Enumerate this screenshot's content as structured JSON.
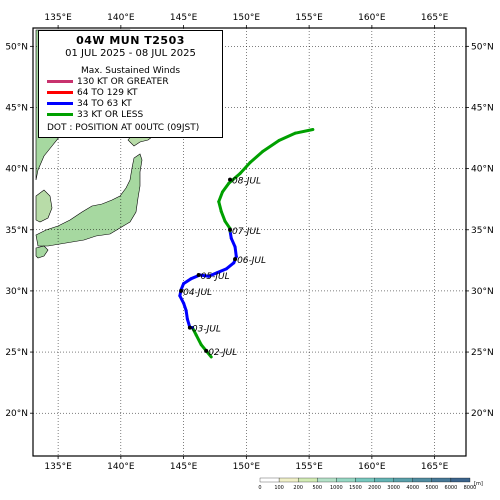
{
  "title": {
    "storm": "04W  MUN  T2503",
    "period": "01 JUL 2025 - 08 JUL 2025"
  },
  "legend": {
    "heading": "Max. Sustained Winds",
    "items": [
      {
        "label": "130 KT OR GREATER",
        "color": "#c8326e"
      },
      {
        "label": "64 TO 129 KT",
        "color": "#ff0000"
      },
      {
        "label": "34 TO 63 KT",
        "color": "#0000ff"
      },
      {
        "label": "33 KT OR LESS",
        "color": "#00a000"
      }
    ],
    "dot_note": "DOT : POSITION AT 00UTC (09JST)"
  },
  "axes": {
    "lon_ticks": [
      {
        "value": 135,
        "label": "135°E"
      },
      {
        "value": 140,
        "label": "140°E"
      },
      {
        "value": 145,
        "label": "145°E"
      },
      {
        "value": 150,
        "label": "150°E"
      },
      {
        "value": 155,
        "label": "155°E"
      },
      {
        "value": 160,
        "label": "160°E"
      },
      {
        "value": 165,
        "label": "165°E"
      }
    ],
    "lat_ticks": [
      {
        "value": 50,
        "label": "50°N"
      },
      {
        "value": 45,
        "label": "45°N"
      },
      {
        "value": 40,
        "label": "40°N"
      },
      {
        "value": 35,
        "label": "35°N"
      },
      {
        "value": 30,
        "label": "30°N"
      },
      {
        "value": 25,
        "label": "25°N"
      },
      {
        "value": 20,
        "label": "20°N"
      }
    ],
    "lon_range": [
      133,
      167.5
    ],
    "lat_range": [
      16.5,
      51.5
    ],
    "grid": true
  },
  "track": [
    {
      "lon": 147.2,
      "lat": 24.6,
      "cat": "ts_or_less"
    },
    {
      "lon": 146.8,
      "lat": 25.1,
      "cat": "ts_or_less"
    },
    {
      "lon": 146.4,
      "lat": 25.6,
      "cat": "ts_or_less"
    },
    {
      "lon": 146.0,
      "lat": 26.4,
      "cat": "ts_or_less"
    },
    {
      "lon": 145.7,
      "lat": 27.0,
      "cat": "ts_or_less"
    },
    {
      "lon": 145.5,
      "lat": 27.0,
      "cat": "storm"
    },
    {
      "lon": 145.3,
      "lat": 27.7,
      "cat": "storm"
    },
    {
      "lon": 145.2,
      "lat": 28.4,
      "cat": "storm"
    },
    {
      "lon": 145.0,
      "lat": 29.0,
      "cat": "storm"
    },
    {
      "lon": 144.7,
      "lat": 29.6,
      "cat": "storm"
    },
    {
      "lon": 144.8,
      "lat": 30.1,
      "cat": "storm"
    },
    {
      "lon": 145.0,
      "lat": 30.6,
      "cat": "storm"
    },
    {
      "lon": 145.6,
      "lat": 31.0,
      "cat": "storm"
    },
    {
      "lon": 146.3,
      "lat": 31.3,
      "cat": "storm"
    },
    {
      "lon": 147.0,
      "lat": 31.2,
      "cat": "storm"
    },
    {
      "lon": 147.7,
      "lat": 31.5,
      "cat": "storm"
    },
    {
      "lon": 148.4,
      "lat": 31.8,
      "cat": "storm"
    },
    {
      "lon": 149.0,
      "lat": 32.3,
      "cat": "storm"
    },
    {
      "lon": 149.2,
      "lat": 32.8,
      "cat": "storm"
    },
    {
      "lon": 149.1,
      "lat": 33.6,
      "cat": "storm"
    },
    {
      "lon": 148.8,
      "lat": 34.3,
      "cat": "storm"
    },
    {
      "lon": 148.7,
      "lat": 34.9,
      "cat": "storm"
    },
    {
      "lon": 148.7,
      "lat": 35.1,
      "cat": "ts_or_less"
    },
    {
      "lon": 148.3,
      "lat": 35.7,
      "cat": "ts_or_less"
    },
    {
      "lon": 148.0,
      "lat": 36.5,
      "cat": "ts_or_less"
    },
    {
      "lon": 147.8,
      "lat": 37.3,
      "cat": "ts_or_less"
    },
    {
      "lon": 148.1,
      "lat": 38.1,
      "cat": "ts_or_less"
    },
    {
      "lon": 148.6,
      "lat": 38.8,
      "cat": "ts_or_less"
    },
    {
      "lon": 149.5,
      "lat": 39.6,
      "cat": "ts_or_less"
    },
    {
      "lon": 150.3,
      "lat": 40.5,
      "cat": "ts_or_less"
    },
    {
      "lon": 151.3,
      "lat": 41.4,
      "cat": "ts_or_less"
    },
    {
      "lon": 152.6,
      "lat": 42.3,
      "cat": "ts_or_less"
    },
    {
      "lon": 153.9,
      "lat": 42.9,
      "cat": "ts_or_less"
    },
    {
      "lon": 155.3,
      "lat": 43.2,
      "cat": "ts_or_less"
    }
  ],
  "daily_positions": [
    {
      "label": "02-JUL",
      "lon": 146.8,
      "lat": 25.1
    },
    {
      "label": "03-JUL",
      "lon": 145.5,
      "lat": 27.0
    },
    {
      "label": "04-JUL",
      "lon": 144.8,
      "lat": 30.0
    },
    {
      "label": "05-JUL",
      "lon": 146.2,
      "lat": 31.3
    },
    {
      "label": "06-JUL",
      "lon": 149.1,
      "lat": 32.6
    },
    {
      "label": "07-JUL",
      "lon": 148.7,
      "lat": 35.0
    },
    {
      "label": "08-JUL",
      "lon": 148.7,
      "lat": 39.1
    }
  ],
  "colorbar": {
    "labels": [
      "0",
      "100",
      "200",
      "500",
      "1000",
      "1500",
      "2000",
      "3000",
      "4000",
      "5000",
      "6000",
      "8000"
    ],
    "unit": "[m]",
    "colors": [
      "#ffffff",
      "#f0f0c8",
      "#d2ebb4",
      "#b4e1c8",
      "#96d7c3",
      "#78c8be",
      "#64b4b4",
      "#5aa0aa",
      "#508ca0",
      "#467896",
      "#3c648c"
    ]
  }
}
